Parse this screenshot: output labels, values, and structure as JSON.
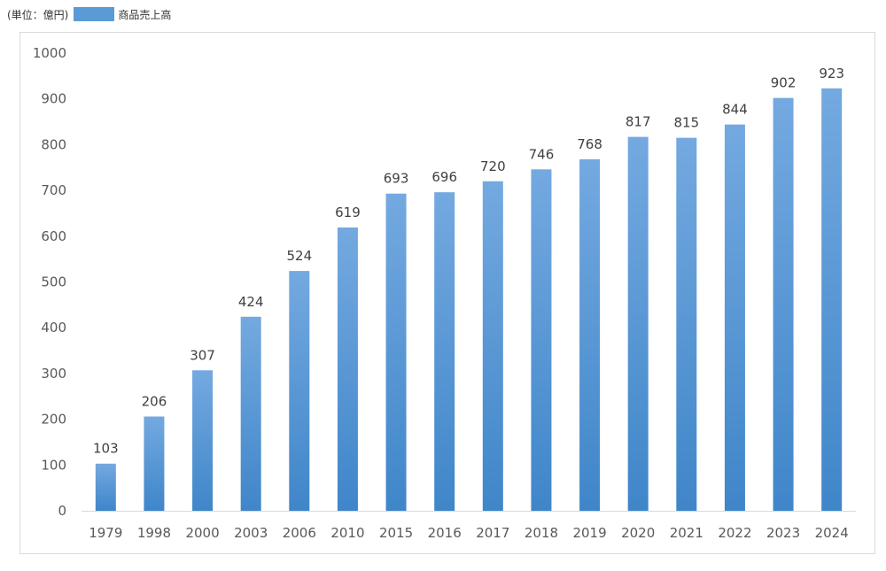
{
  "header": {
    "unit_label": "(単位：億円)"
  },
  "colors": {
    "bar_top": "#74a9e0",
    "bar_bottom": "#3f86c9",
    "swatch": "#5b9bd5",
    "axis": "#d9d9d9"
  },
  "chart_data": {
    "type": "bar",
    "categories": [
      "1979",
      "1998",
      "2000",
      "2003",
      "2006",
      "2010",
      "2015",
      "2016",
      "2017",
      "2018",
      "2019",
      "2020",
      "2021",
      "2022",
      "2023",
      "2024"
    ],
    "series": [
      {
        "name": "商品売上高",
        "values": [
          103,
          206,
          307,
          424,
          524,
          619,
          693,
          696,
          720,
          746,
          768,
          817,
          815,
          844,
          902,
          923
        ]
      }
    ],
    "y_ticks": [
      0,
      100,
      200,
      300,
      400,
      500,
      600,
      700,
      800,
      900,
      1000
    ],
    "ylim": [
      0,
      1000
    ],
    "data_labels": true,
    "legend_position": "top-left",
    "grid": false
  }
}
